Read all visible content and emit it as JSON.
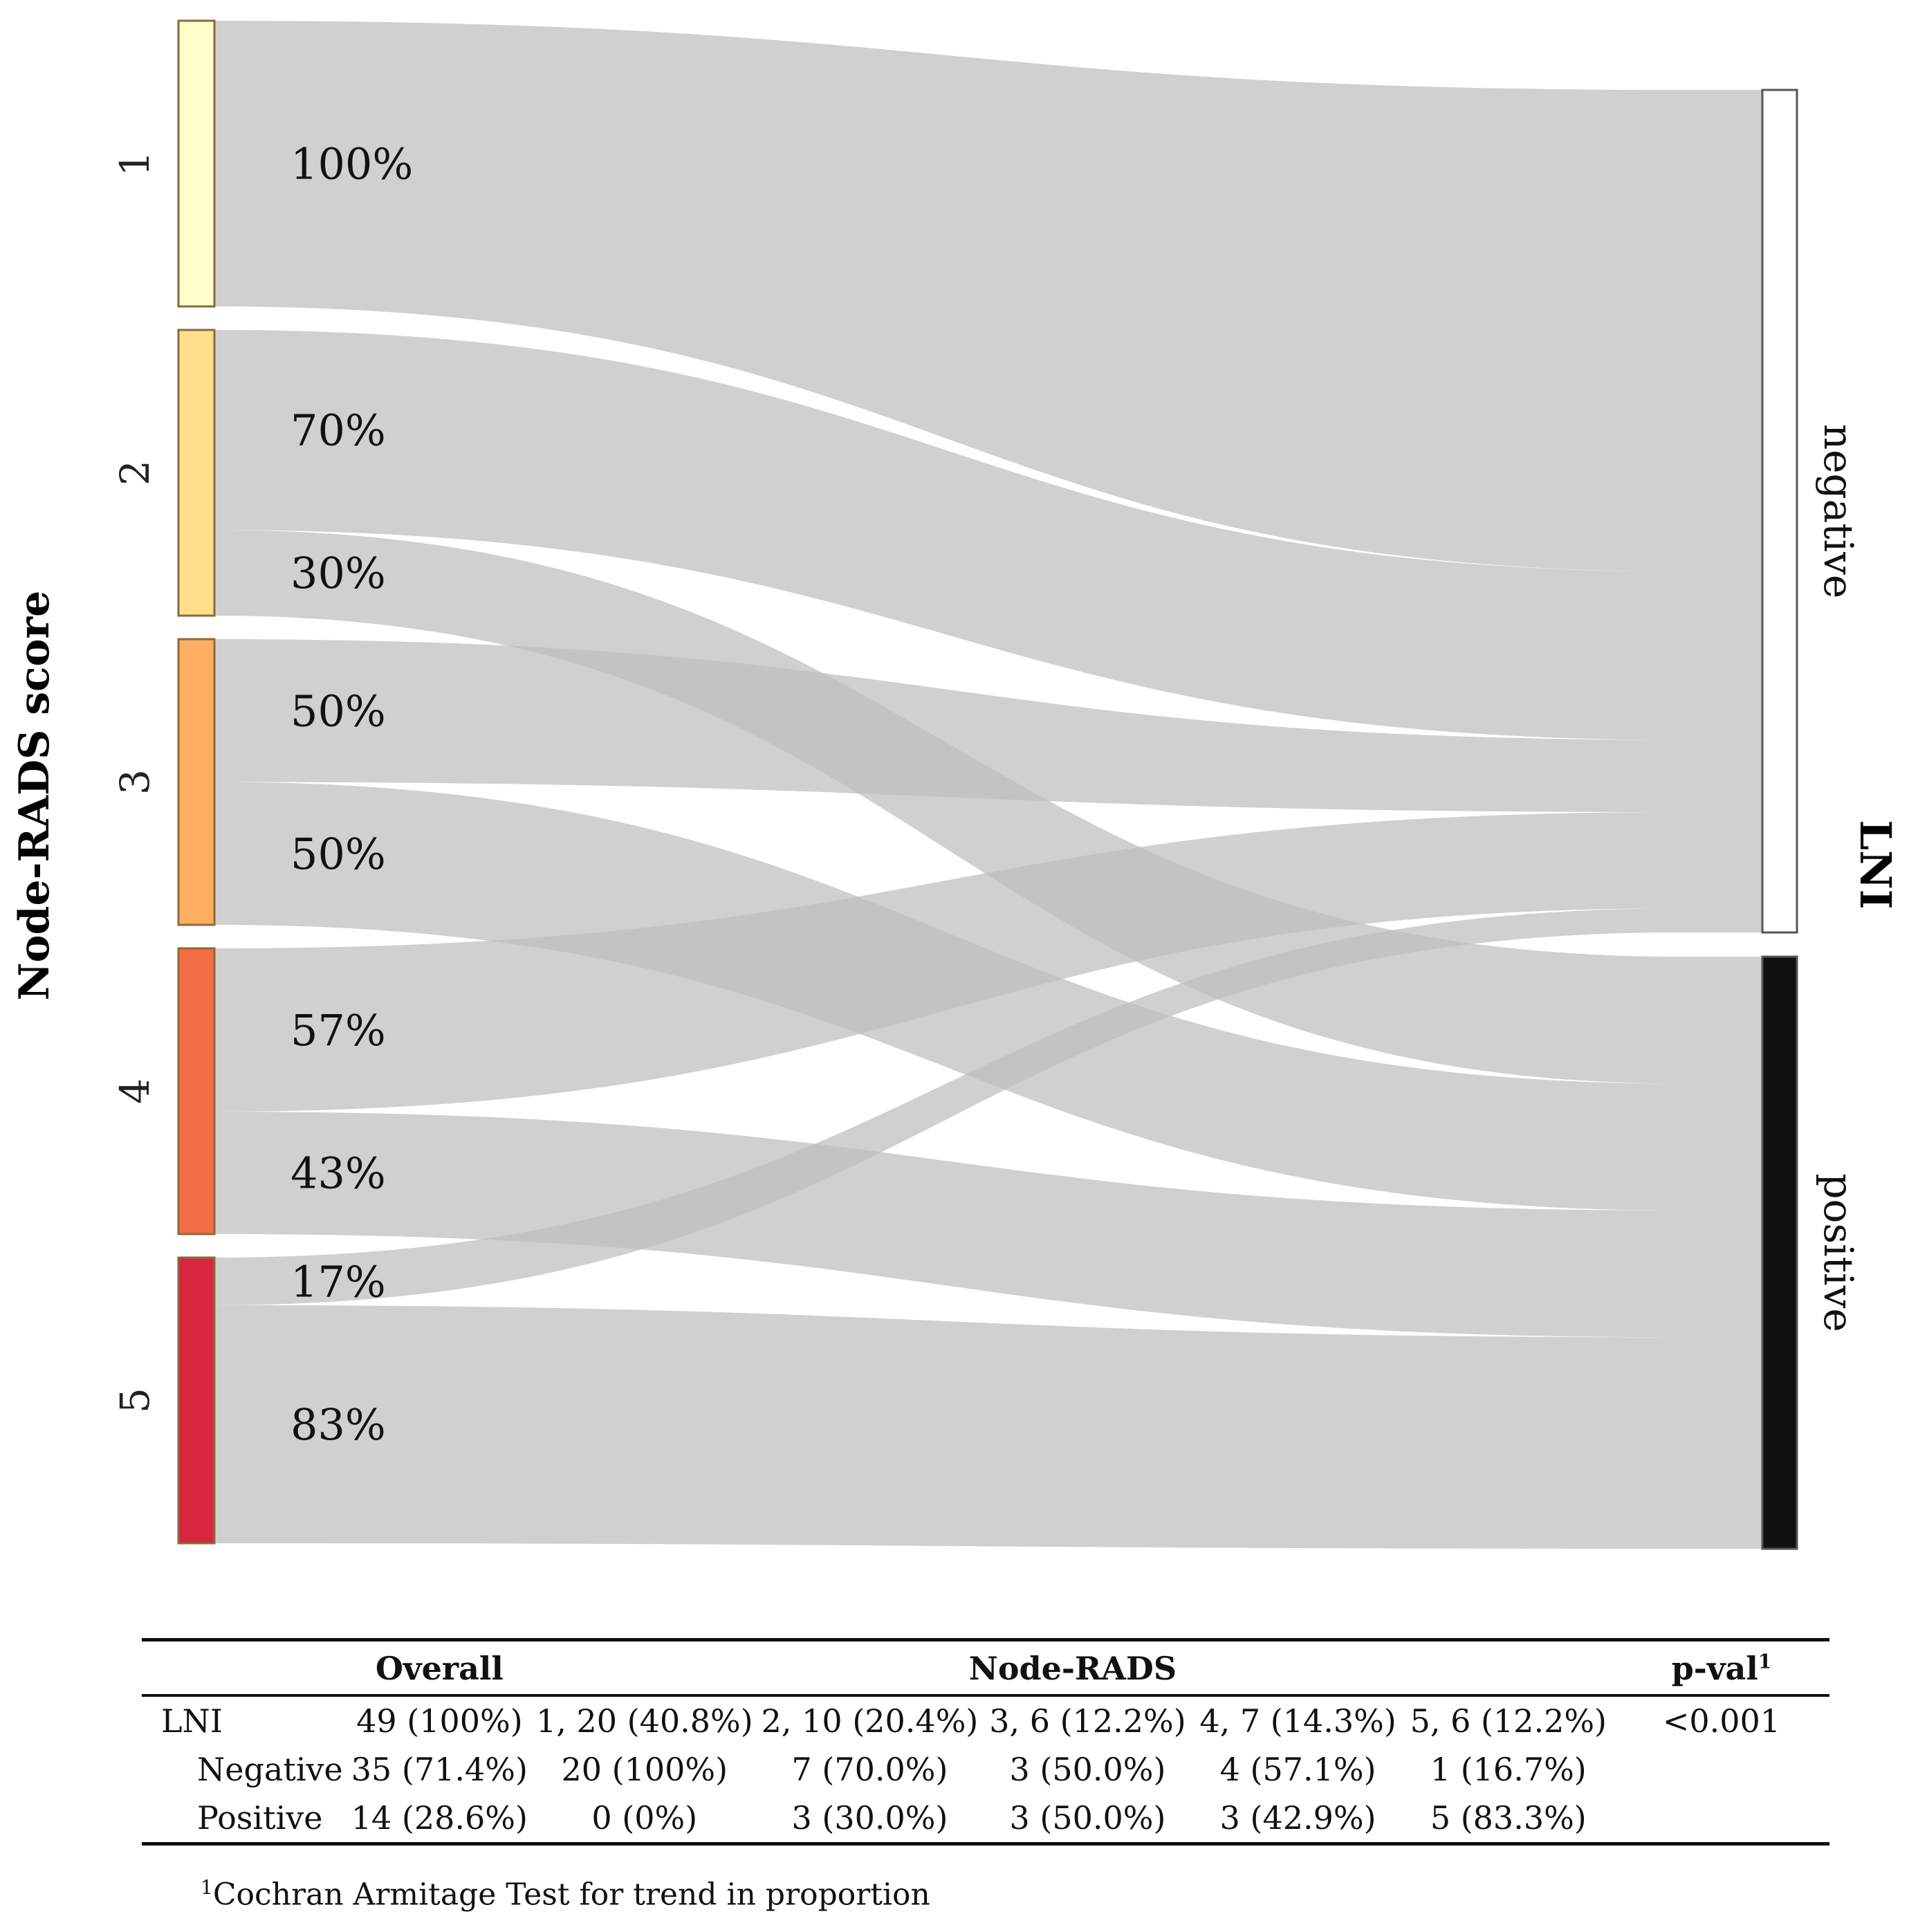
{
  "chart_data": {
    "type": "sankey",
    "ylabel": "Node-RADS score",
    "target_title": "LNI",
    "sources": [
      {
        "label": "1",
        "color": "#FFFFCC"
      },
      {
        "label": "2",
        "color": "#FEE08B"
      },
      {
        "label": "3",
        "color": "#FDAE61"
      },
      {
        "label": "4",
        "color": "#F46D43"
      },
      {
        "label": "5",
        "color": "#D7263D"
      }
    ],
    "targets": [
      {
        "label": "negative",
        "color": "#FFFFFF"
      },
      {
        "label": "positive",
        "color": "#111111"
      }
    ],
    "flows": [
      {
        "source": "1",
        "target": "negative",
        "percent": "100%",
        "count": 20
      },
      {
        "source": "2",
        "target": "negative",
        "percent": "70%",
        "count": 7
      },
      {
        "source": "2",
        "target": "positive",
        "percent": "30%",
        "count": 3
      },
      {
        "source": "3",
        "target": "negative",
        "percent": "50%",
        "count": 3
      },
      {
        "source": "3",
        "target": "positive",
        "percent": "50%",
        "count": 3
      },
      {
        "source": "4",
        "target": "negative",
        "percent": "57%",
        "count": 4
      },
      {
        "source": "4",
        "target": "positive",
        "percent": "43%",
        "count": 3
      },
      {
        "source": "5",
        "target": "negative",
        "percent": "17%",
        "count": 1
      },
      {
        "source": "5",
        "target": "positive",
        "percent": "83%",
        "count": 5
      }
    ],
    "link_color": "#BEBEBE"
  },
  "table": {
    "headers": {
      "overall": "Overall",
      "node_rads": "Node-RADS",
      "pval": "p-val",
      "pval_sup": "1"
    },
    "rows": [
      {
        "label": "LNI",
        "overall": "49 (100%)",
        "c1": "1, 20 (40.8%)",
        "c2": "2, 10 (20.4%)",
        "c3": "3, 6 (12.2%)",
        "c4": "4, 7 (14.3%)",
        "c5": "5, 6 (12.2%)",
        "pval": "<0.001"
      },
      {
        "label": "Negative",
        "overall": "35 (71.4%)",
        "c1": "20 (100%)",
        "c2": "7 (70.0%)",
        "c3": "3 (50.0%)",
        "c4": "4 (57.1%)",
        "c5": "1 (16.7%)",
        "pval": ""
      },
      {
        "label": "Positive",
        "overall": "14 (28.6%)",
        "c1": "0 (0%)",
        "c2": "3 (30.0%)",
        "c3": "3 (50.0%)",
        "c4": "3 (42.9%)",
        "c5": "5 (83.3%)",
        "pval": ""
      }
    ]
  },
  "footnote": {
    "sup": "1",
    "text": "Cochran Armitage Test for trend in proportion"
  }
}
